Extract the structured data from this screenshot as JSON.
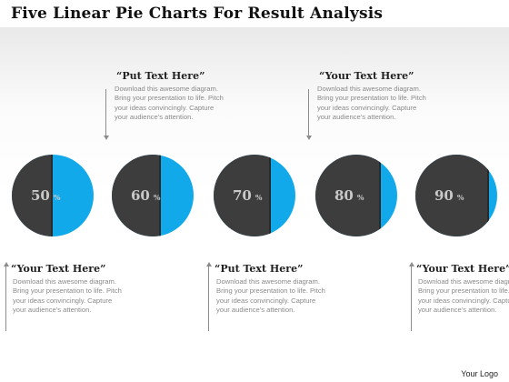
{
  "title": "Five Linear Pie Charts For Result Analysis",
  "colors": {
    "pie_dark": "#3d3d3d",
    "pie_accent": "#12a9ea"
  },
  "pies": [
    {
      "value": 50,
      "label": "50",
      "unit": "%"
    },
    {
      "value": 60,
      "label": "60",
      "unit": "%"
    },
    {
      "value": 70,
      "label": "70",
      "unit": "%"
    },
    {
      "value": 80,
      "label": "80",
      "unit": "%"
    },
    {
      "value": 90,
      "label": "90",
      "unit": "%"
    }
  ],
  "callouts": {
    "top1": {
      "heading": "“Put Text Here”",
      "body": "Download this awesome diagram. Bring your presentation to life. Pitch your ideas convincingly. Capture your audience’s attention."
    },
    "top2": {
      "heading": "“Your Text Here”",
      "body": "Download this awesome diagram. Bring your presentation to life. Pitch your ideas convincingly. Capture your audience’s attention."
    },
    "bottom1": {
      "heading": "“Your Text Here”",
      "body": "Download this awesome diagram. Bring your presentation to life. Pitch your ideas convincingly. Capture your audience’s attention."
    },
    "bottom2": {
      "heading": "“Put Text Here”",
      "body": "Download this awesome diagram. Bring your presentation to life. Pitch your ideas convincingly. Capture your audience’s attention."
    },
    "bottom3": {
      "heading": "“Your Text Here”",
      "body": "Download this awesome diagram. Bring your presentation to life. Pitch your ideas convincingly. Capture your audience’s attention."
    }
  },
  "logo": "Your Logo"
}
